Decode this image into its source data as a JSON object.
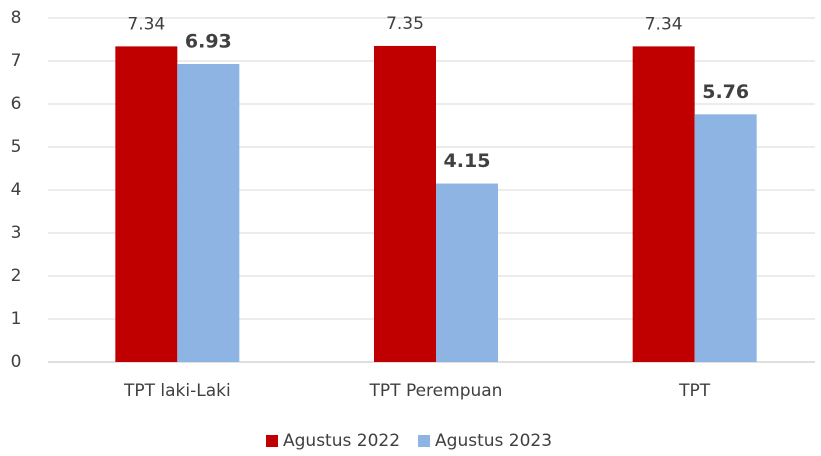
{
  "chart_data": {
    "type": "bar",
    "categories": [
      "TPT laki-Laki",
      "TPT Perempuan",
      "TPT"
    ],
    "series": [
      {
        "name": "Agustus 2022",
        "color": "#c00000",
        "values": [
          7.34,
          7.35,
          7.34
        ]
      },
      {
        "name": "Agustus 2023",
        "color": "#8eb4e3",
        "values": [
          6.93,
          4.15,
          5.76
        ]
      }
    ],
    "ylim": [
      0,
      8
    ],
    "yticks": [
      0,
      1,
      2,
      3,
      4,
      5,
      6,
      7,
      8
    ],
    "grid": true,
    "legend": "bottom"
  }
}
